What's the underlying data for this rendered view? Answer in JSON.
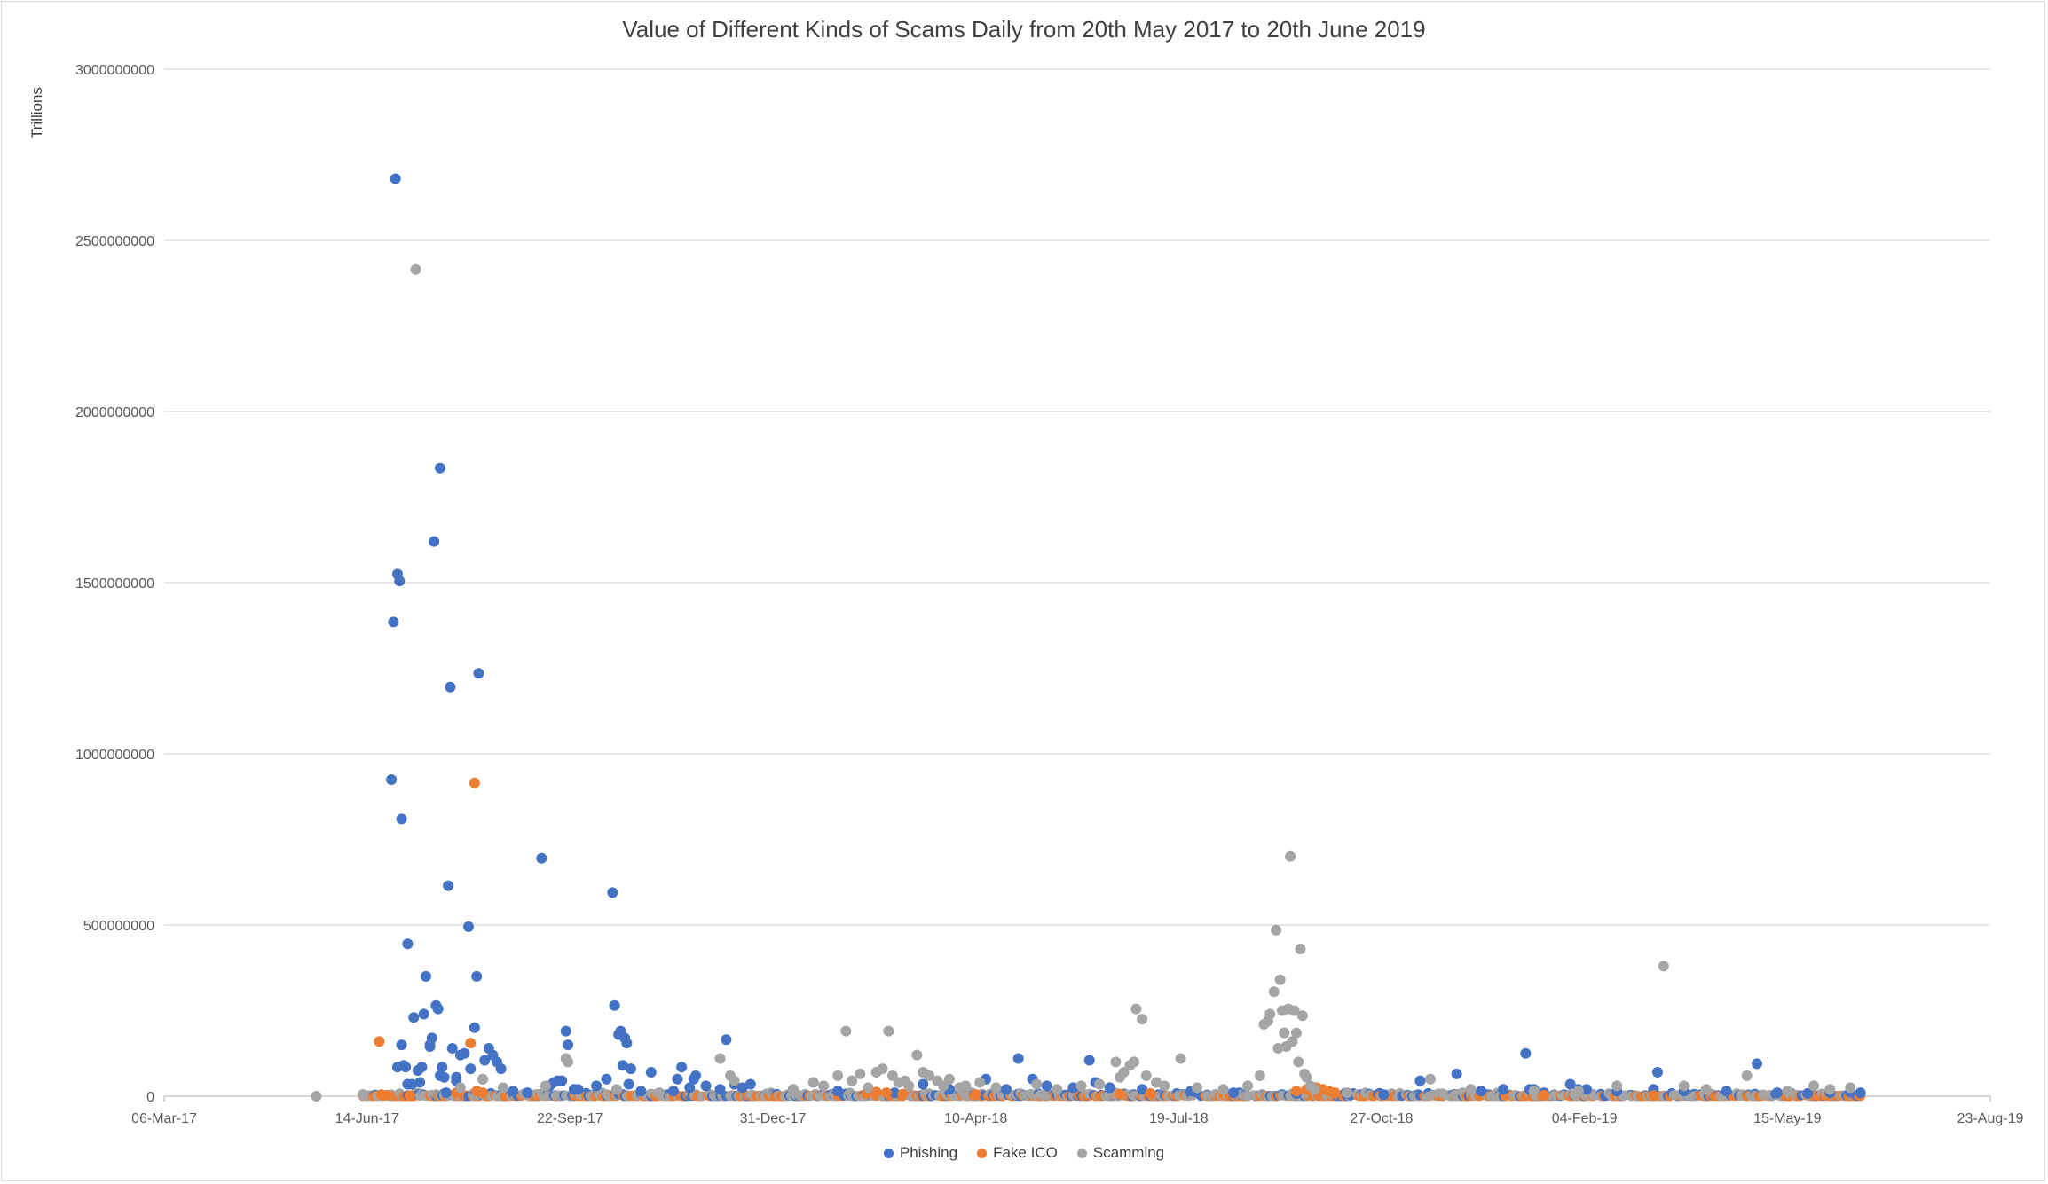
{
  "chart_data": {
    "type": "scatter",
    "title": "Value of Different Kinds of Scams Daily from 20th May 2017 to 20th June 2019",
    "ylabel": "Trillions",
    "xlabel": "",
    "xlim": [
      "2017-03-06",
      "2019-08-23"
    ],
    "ylim": [
      0,
      3000000000
    ],
    "grid": true,
    "legend_position": "bottom",
    "x_ticks": [
      "06-Mar-17",
      "14-Jun-17",
      "22-Sep-17",
      "31-Dec-17",
      "10-Apr-18",
      "19-Jul-18",
      "27-Oct-18",
      "04-Feb-19",
      "15-May-19",
      "23-Aug-19"
    ],
    "y_ticks": [
      "0",
      "500000000",
      "1000000000",
      "1500000000",
      "2000000000",
      "2500000000",
      "3000000000"
    ],
    "series": [
      {
        "name": "Phishing",
        "color": "#4472c4",
        "points": [
          [
            "2017-06-28",
            2680000000
          ],
          [
            "2017-06-29",
            1525000000
          ],
          [
            "2017-06-30",
            1505000000
          ],
          [
            "2017-06-27",
            1385000000
          ],
          [
            "2017-06-26",
            925000000
          ],
          [
            "2017-07-01",
            810000000
          ],
          [
            "2017-07-04",
            445000000
          ],
          [
            "2017-06-29",
            85000000
          ],
          [
            "2017-07-01",
            150000000
          ],
          [
            "2017-07-02",
            90000000
          ],
          [
            "2017-07-03",
            85000000
          ],
          [
            "2017-07-04",
            35000000
          ],
          [
            "2017-07-06",
            35000000
          ],
          [
            "2017-07-07",
            230000000
          ],
          [
            "2017-07-09",
            75000000
          ],
          [
            "2017-07-10",
            40000000
          ],
          [
            "2017-07-12",
            240000000
          ],
          [
            "2017-07-11",
            85000000
          ],
          [
            "2017-07-13",
            350000000
          ],
          [
            "2017-07-15",
            150000000
          ],
          [
            "2017-07-15",
            145000000
          ],
          [
            "2017-07-16",
            170000000
          ],
          [
            "2017-07-18",
            265000000
          ],
          [
            "2017-07-19",
            255000000
          ],
          [
            "2017-07-20",
            60000000
          ],
          [
            "2017-07-21",
            85000000
          ],
          [
            "2017-07-22",
            55000000
          ],
          [
            "2017-07-23",
            10000000
          ],
          [
            "2017-07-17",
            1620000000
          ],
          [
            "2017-07-20",
            1835000000
          ],
          [
            "2017-07-24",
            615000000
          ],
          [
            "2017-07-25",
            1195000000
          ],
          [
            "2017-07-26",
            140000000
          ],
          [
            "2017-07-28",
            45000000
          ],
          [
            "2017-07-28",
            55000000
          ],
          [
            "2017-07-30",
            120000000
          ],
          [
            "2017-08-01",
            125000000
          ],
          [
            "2017-08-03",
            495000000
          ],
          [
            "2017-08-04",
            80000000
          ],
          [
            "2017-08-06",
            200000000
          ],
          [
            "2017-08-07",
            350000000
          ],
          [
            "2017-08-08",
            1235000000
          ],
          [
            "2017-08-10",
            50000000
          ],
          [
            "2017-08-11",
            105000000
          ],
          [
            "2017-08-13",
            140000000
          ],
          [
            "2017-08-15",
            120000000
          ],
          [
            "2017-08-17",
            100000000
          ],
          [
            "2017-08-19",
            80000000
          ],
          [
            "2017-08-25",
            15000000
          ],
          [
            "2017-09-01",
            10000000
          ],
          [
            "2017-09-08",
            695000000
          ],
          [
            "2017-09-12",
            30000000
          ],
          [
            "2017-09-14",
            40000000
          ],
          [
            "2017-09-16",
            45000000
          ],
          [
            "2017-09-18",
            45000000
          ],
          [
            "2017-09-20",
            190000000
          ],
          [
            "2017-09-21",
            150000000
          ],
          [
            "2017-09-24",
            20000000
          ],
          [
            "2017-09-26",
            20000000
          ],
          [
            "2017-10-05",
            30000000
          ],
          [
            "2017-10-10",
            50000000
          ],
          [
            "2017-10-13",
            595000000
          ],
          [
            "2017-10-14",
            265000000
          ],
          [
            "2017-10-16",
            180000000
          ],
          [
            "2017-10-17",
            190000000
          ],
          [
            "2017-10-18",
            90000000
          ],
          [
            "2017-10-19",
            170000000
          ],
          [
            "2017-10-20",
            155000000
          ],
          [
            "2017-10-21",
            35000000
          ],
          [
            "2017-10-22",
            80000000
          ],
          [
            "2017-10-27",
            15000000
          ],
          [
            "2017-11-01",
            70000000
          ],
          [
            "2017-11-12",
            15000000
          ],
          [
            "2017-11-14",
            50000000
          ],
          [
            "2017-11-16",
            85000000
          ],
          [
            "2017-11-20",
            25000000
          ],
          [
            "2017-11-22",
            50000000
          ],
          [
            "2017-11-23",
            60000000
          ],
          [
            "2017-11-28",
            30000000
          ],
          [
            "2017-12-05",
            20000000
          ],
          [
            "2017-12-08",
            165000000
          ],
          [
            "2017-12-12",
            35000000
          ],
          [
            "2017-12-16",
            25000000
          ],
          [
            "2017-12-20",
            35000000
          ],
          [
            "2018-01-10",
            20000000
          ],
          [
            "2018-02-01",
            15000000
          ],
          [
            "2018-03-01",
            10000000
          ],
          [
            "2018-03-15",
            35000000
          ],
          [
            "2018-03-28",
            20000000
          ],
          [
            "2018-04-15",
            50000000
          ],
          [
            "2018-04-25",
            20000000
          ],
          [
            "2018-05-01",
            110000000
          ],
          [
            "2018-05-08",
            50000000
          ],
          [
            "2018-05-15",
            30000000
          ],
          [
            "2018-05-28",
            25000000
          ],
          [
            "2018-06-05",
            105000000
          ],
          [
            "2018-06-08",
            40000000
          ],
          [
            "2018-06-15",
            25000000
          ],
          [
            "2018-07-01",
            20000000
          ],
          [
            "2018-07-25",
            15000000
          ],
          [
            "2018-08-15",
            10000000
          ],
          [
            "2018-09-15",
            8000000
          ],
          [
            "2018-10-10",
            8000000
          ],
          [
            "2018-10-28",
            5000000
          ],
          [
            "2018-11-15",
            45000000
          ],
          [
            "2018-12-03",
            65000000
          ],
          [
            "2018-12-15",
            15000000
          ],
          [
            "2018-12-26",
            20000000
          ],
          [
            "2019-01-06",
            125000000
          ],
          [
            "2019-01-08",
            20000000
          ],
          [
            "2019-01-10",
            20000000
          ],
          [
            "2019-01-15",
            10000000
          ],
          [
            "2019-01-28",
            35000000
          ],
          [
            "2019-02-01",
            20000000
          ],
          [
            "2019-02-05",
            20000000
          ],
          [
            "2019-02-20",
            15000000
          ],
          [
            "2019-03-12",
            70000000
          ],
          [
            "2019-03-10",
            20000000
          ],
          [
            "2019-03-25",
            15000000
          ],
          [
            "2019-04-15",
            15000000
          ],
          [
            "2019-04-30",
            95000000
          ],
          [
            "2019-05-10",
            10000000
          ],
          [
            "2019-05-25",
            8000000
          ],
          [
            "2019-06-05",
            10000000
          ],
          [
            "2019-06-15",
            12000000
          ],
          [
            "2019-06-20",
            10000000
          ]
        ]
      },
      {
        "name": "Fake ICO",
        "color": "#ed7d31",
        "points": [
          [
            "2017-06-20",
            160000000
          ],
          [
            "2017-06-21",
            5000000
          ],
          [
            "2017-06-24",
            3000000
          ],
          [
            "2017-07-05",
            2000000
          ],
          [
            "2017-07-28",
            10000000
          ],
          [
            "2017-08-04",
            155000000
          ],
          [
            "2017-08-06",
            915000000
          ],
          [
            "2017-08-07",
            15000000
          ],
          [
            "2017-08-10",
            10000000
          ],
          [
            "2018-02-15",
            8000000
          ],
          [
            "2018-02-20",
            12000000
          ],
          [
            "2018-02-25",
            10000000
          ],
          [
            "2018-03-05",
            6000000
          ],
          [
            "2018-04-10",
            5000000
          ],
          [
            "2018-06-20",
            6000000
          ],
          [
            "2018-07-05",
            8000000
          ],
          [
            "2018-09-15",
            15000000
          ],
          [
            "2018-09-20",
            20000000
          ],
          [
            "2018-09-25",
            25000000
          ],
          [
            "2018-09-28",
            20000000
          ],
          [
            "2018-10-01",
            15000000
          ],
          [
            "2018-10-04",
            10000000
          ],
          [
            "2019-01-15",
            3000000
          ],
          [
            "2019-03-10",
            2000000
          ]
        ]
      },
      {
        "name": "Scamming",
        "color": "#a5a5a5",
        "points": [
          [
            "2017-05-20",
            0
          ],
          [
            "2017-06-12",
            5000000
          ],
          [
            "2017-07-08",
            2415000000
          ],
          [
            "2017-07-30",
            25000000
          ],
          [
            "2017-08-10",
            50000000
          ],
          [
            "2017-08-20",
            25000000
          ],
          [
            "2017-09-10",
            30000000
          ],
          [
            "2017-09-20",
            110000000
          ],
          [
            "2017-09-21",
            100000000
          ],
          [
            "2017-10-15",
            20000000
          ],
          [
            "2017-11-05",
            10000000
          ],
          [
            "2017-12-05",
            110000000
          ],
          [
            "2017-12-10",
            60000000
          ],
          [
            "2017-12-12",
            45000000
          ],
          [
            "2018-01-10",
            20000000
          ],
          [
            "2018-01-20",
            40000000
          ],
          [
            "2018-01-25",
            30000000
          ],
          [
            "2018-02-01",
            60000000
          ],
          [
            "2018-02-05",
            190000000
          ],
          [
            "2018-02-08",
            45000000
          ],
          [
            "2018-02-12",
            65000000
          ],
          [
            "2018-02-16",
            25000000
          ],
          [
            "2018-02-20",
            70000000
          ],
          [
            "2018-02-23",
            80000000
          ],
          [
            "2018-02-26",
            190000000
          ],
          [
            "2018-02-28",
            60000000
          ],
          [
            "2018-03-03",
            40000000
          ],
          [
            "2018-03-06",
            45000000
          ],
          [
            "2018-03-08",
            30000000
          ],
          [
            "2018-03-12",
            120000000
          ],
          [
            "2018-03-15",
            70000000
          ],
          [
            "2018-03-18",
            60000000
          ],
          [
            "2018-03-22",
            45000000
          ],
          [
            "2018-03-25",
            30000000
          ],
          [
            "2018-03-28",
            50000000
          ],
          [
            "2018-04-02",
            25000000
          ],
          [
            "2018-04-05",
            30000000
          ],
          [
            "2018-04-12",
            40000000
          ],
          [
            "2018-04-20",
            25000000
          ],
          [
            "2018-05-10",
            35000000
          ],
          [
            "2018-05-20",
            20000000
          ],
          [
            "2018-06-01",
            30000000
          ],
          [
            "2018-06-10",
            35000000
          ],
          [
            "2018-06-18",
            100000000
          ],
          [
            "2018-06-20",
            55000000
          ],
          [
            "2018-06-22",
            70000000
          ],
          [
            "2018-06-25",
            90000000
          ],
          [
            "2018-06-27",
            100000000
          ],
          [
            "2018-06-28",
            255000000
          ],
          [
            "2018-07-01",
            225000000
          ],
          [
            "2018-07-03",
            60000000
          ],
          [
            "2018-07-08",
            40000000
          ],
          [
            "2018-07-12",
            30000000
          ],
          [
            "2018-07-20",
            110000000
          ],
          [
            "2018-07-28",
            25000000
          ],
          [
            "2018-08-10",
            20000000
          ],
          [
            "2018-08-22",
            30000000
          ],
          [
            "2018-08-28",
            60000000
          ],
          [
            "2018-08-30",
            210000000
          ],
          [
            "2018-09-01",
            220000000
          ],
          [
            "2018-09-02",
            240000000
          ],
          [
            "2018-09-04",
            305000000
          ],
          [
            "2018-09-05",
            485000000
          ],
          [
            "2018-09-07",
            340000000
          ],
          [
            "2018-09-06",
            140000000
          ],
          [
            "2018-09-08",
            250000000
          ],
          [
            "2018-09-09",
            185000000
          ],
          [
            "2018-09-10",
            145000000
          ],
          [
            "2018-09-11",
            255000000
          ],
          [
            "2018-09-12",
            700000000
          ],
          [
            "2018-09-13",
            160000000
          ],
          [
            "2018-09-14",
            250000000
          ],
          [
            "2018-09-15",
            185000000
          ],
          [
            "2018-09-16",
            100000000
          ],
          [
            "2018-09-17",
            430000000
          ],
          [
            "2018-09-18",
            235000000
          ],
          [
            "2018-09-19",
            65000000
          ],
          [
            "2018-09-20",
            55000000
          ],
          [
            "2018-09-22",
            30000000
          ],
          [
            "2018-09-24",
            20000000
          ],
          [
            "2018-10-10",
            10000000
          ],
          [
            "2018-11-20",
            50000000
          ],
          [
            "2018-12-10",
            20000000
          ],
          [
            "2019-01-10",
            15000000
          ],
          [
            "2019-02-01",
            15000000
          ],
          [
            "2019-02-20",
            30000000
          ],
          [
            "2019-03-15",
            380000000
          ],
          [
            "2019-03-25",
            30000000
          ],
          [
            "2019-04-05",
            20000000
          ],
          [
            "2019-04-25",
            60000000
          ],
          [
            "2019-05-15",
            15000000
          ],
          [
            "2019-05-28",
            30000000
          ],
          [
            "2019-06-05",
            20000000
          ],
          [
            "2019-06-15",
            25000000
          ]
        ]
      }
    ]
  }
}
